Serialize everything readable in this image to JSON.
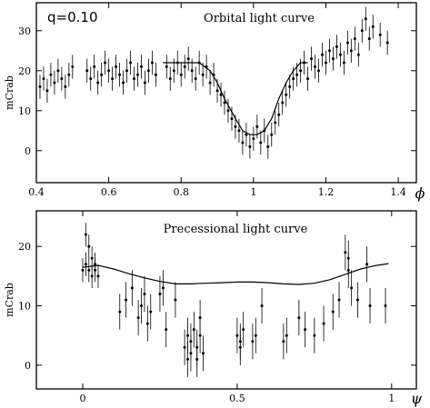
{
  "chart_data": [
    {
      "type": "scatter",
      "title": "Orbital light curve",
      "annotation": "q=0.10",
      "ylabel": "mCrab",
      "xlabel_symbol": "ϕ",
      "xlim": [
        0.4,
        1.45
      ],
      "ylim": [
        -8,
        37
      ],
      "xticks": [
        0.4,
        0.6,
        0.8,
        1.0,
        1.2,
        1.4
      ],
      "xtick_labels": [
        "0.4",
        "0.6",
        "0.8",
        "1",
        "1.2",
        "1.4"
      ],
      "yticks": [
        0,
        10,
        20,
        30
      ],
      "ytick_labels": [
        "0",
        "10",
        "20",
        "30"
      ],
      "series": [
        {
          "kind": "points_with_errorbars",
          "x": [
            0.41,
            0.42,
            0.43,
            0.44,
            0.45,
            0.46,
            0.47,
            0.48,
            0.49,
            0.5,
            0.54,
            0.55,
            0.56,
            0.57,
            0.58,
            0.59,
            0.6,
            0.61,
            0.62,
            0.63,
            0.64,
            0.65,
            0.66,
            0.67,
            0.68,
            0.69,
            0.7,
            0.71,
            0.72,
            0.73,
            0.76,
            0.77,
            0.78,
            0.79,
            0.8,
            0.81,
            0.82,
            0.83,
            0.84,
            0.85,
            0.86,
            0.87,
            0.88,
            0.89,
            0.9,
            0.91,
            0.92,
            0.93,
            0.94,
            0.95,
            0.96,
            0.97,
            0.98,
            0.99,
            1.0,
            1.01,
            1.02,
            1.03,
            1.04,
            1.05,
            1.06,
            1.07,
            1.08,
            1.09,
            1.1,
            1.11,
            1.12,
            1.13,
            1.14,
            1.15,
            1.16,
            1.17,
            1.18,
            1.19,
            1.2,
            1.21,
            1.22,
            1.23,
            1.24,
            1.25,
            1.26,
            1.27,
            1.28,
            1.29,
            1.3,
            1.31,
            1.32,
            1.33,
            1.35,
            1.37
          ],
          "y": [
            16,
            18,
            15,
            19,
            17,
            20,
            18,
            16,
            19,
            21,
            20,
            18,
            21,
            17,
            19,
            22,
            20,
            18,
            21,
            19,
            17,
            20,
            22,
            18,
            19,
            21,
            17,
            20,
            22,
            19,
            21,
            18,
            20,
            22,
            19,
            21,
            23,
            20,
            18,
            22,
            19,
            21,
            17,
            19,
            15,
            14,
            12,
            10,
            8,
            6,
            5,
            2,
            4,
            1,
            3,
            6,
            2,
            5,
            1,
            4,
            7,
            9,
            12,
            14,
            16,
            18,
            19,
            20,
            22,
            18,
            23,
            21,
            20,
            24,
            22,
            25,
            23,
            26,
            24,
            22,
            27,
            25,
            28,
            24,
            30,
            33,
            28,
            31,
            29,
            27
          ],
          "yerr": [
            3,
            3,
            3,
            3,
            3,
            3,
            3,
            3,
            3,
            3,
            3,
            3,
            3,
            3,
            3,
            3,
            3,
            3,
            3,
            3,
            3,
            3,
            3,
            3,
            3,
            3,
            3,
            3,
            3,
            3,
            3,
            3,
            3,
            3,
            3,
            3,
            3,
            3,
            3,
            3,
            3,
            3,
            3,
            3,
            3,
            3,
            3,
            3,
            3,
            3,
            3,
            3,
            3,
            3,
            3,
            3,
            3,
            3,
            3,
            3,
            3,
            3,
            3,
            3,
            3,
            3,
            3,
            3,
            3,
            3,
            3,
            3,
            3,
            3,
            3,
            3,
            3,
            3,
            3,
            3,
            3,
            3,
            3,
            3,
            3,
            3,
            3,
            3,
            3,
            3
          ]
        },
        {
          "kind": "model_curve",
          "x": [
            0.75,
            0.8,
            0.85,
            0.88,
            0.9,
            0.92,
            0.95,
            0.97,
            0.99,
            1.01,
            1.03,
            1.05,
            1.07,
            1.09,
            1.11,
            1.13,
            1.15
          ],
          "y": [
            22,
            22,
            22,
            20,
            17,
            13,
            8,
            5,
            4,
            4,
            5,
            8,
            13,
            17,
            20,
            22,
            22
          ]
        }
      ]
    },
    {
      "type": "scatter",
      "title": "Precessional light curve",
      "ylabel": "mCrab",
      "xlabel_symbol": "ψ",
      "xlim": [
        -0.15,
        1.08
      ],
      "ylim": [
        -4,
        26
      ],
      "xticks": [
        0,
        0.5,
        1.0
      ],
      "xtick_labels": [
        "0",
        "0.5",
        "1"
      ],
      "yticks": [
        0,
        10,
        20
      ],
      "ytick_labels": [
        "0",
        "10",
        "20"
      ],
      "series": [
        {
          "kind": "points_with_errorbars",
          "x": [
            0.0,
            0.01,
            0.01,
            0.02,
            0.02,
            0.03,
            0.03,
            0.04,
            0.04,
            0.05,
            0.12,
            0.14,
            0.16,
            0.18,
            0.19,
            0.2,
            0.21,
            0.22,
            0.25,
            0.26,
            0.27,
            0.3,
            0.33,
            0.34,
            0.34,
            0.35,
            0.35,
            0.36,
            0.37,
            0.37,
            0.38,
            0.38,
            0.39,
            0.5,
            0.51,
            0.51,
            0.52,
            0.55,
            0.56,
            0.58,
            0.65,
            0.66,
            0.7,
            0.72,
            0.75,
            0.78,
            0.81,
            0.83,
            0.85,
            0.86,
            0.86,
            0.87,
            0.89,
            0.92,
            0.93,
            0.98
          ],
          "y": [
            16,
            22,
            17,
            20,
            16,
            18,
            15,
            17,
            16,
            15,
            9,
            11,
            13,
            8,
            10,
            12,
            7,
            9,
            12,
            13,
            6,
            11,
            3,
            1,
            5,
            2,
            4,
            6,
            1,
            3,
            8,
            5,
            2,
            5,
            3,
            4,
            6,
            4,
            5,
            10,
            4,
            5,
            8,
            6,
            5,
            7,
            9,
            11,
            19,
            18,
            16,
            13,
            11,
            17,
            10,
            10
          ],
          "yerr": [
            2,
            2,
            2,
            2,
            2,
            2,
            2,
            2,
            2,
            2,
            3,
            3,
            3,
            3,
            3,
            3,
            3,
            3,
            3,
            3,
            3,
            3,
            3,
            3,
            3,
            3,
            3,
            3,
            3,
            3,
            3,
            3,
            3,
            3,
            3,
            3,
            3,
            3,
            3,
            3,
            3,
            3,
            3,
            3,
            3,
            3,
            3,
            3,
            3,
            3,
            3,
            3,
            3,
            3,
            3,
            3
          ]
        },
        {
          "kind": "model_curve",
          "x": [
            0.0,
            0.05,
            0.1,
            0.15,
            0.2,
            0.25,
            0.3,
            0.35,
            0.4,
            0.45,
            0.5,
            0.55,
            0.6,
            0.65,
            0.7,
            0.75,
            0.8,
            0.85,
            0.9,
            0.95,
            0.99
          ],
          "y": [
            16.5,
            16.8,
            16.2,
            15.4,
            14.7,
            14.1,
            13.7,
            13.7,
            13.8,
            13.9,
            14.0,
            14.0,
            13.9,
            13.7,
            13.6,
            13.8,
            14.4,
            15.3,
            16.2,
            16.8,
            17.1
          ]
        }
      ]
    }
  ]
}
